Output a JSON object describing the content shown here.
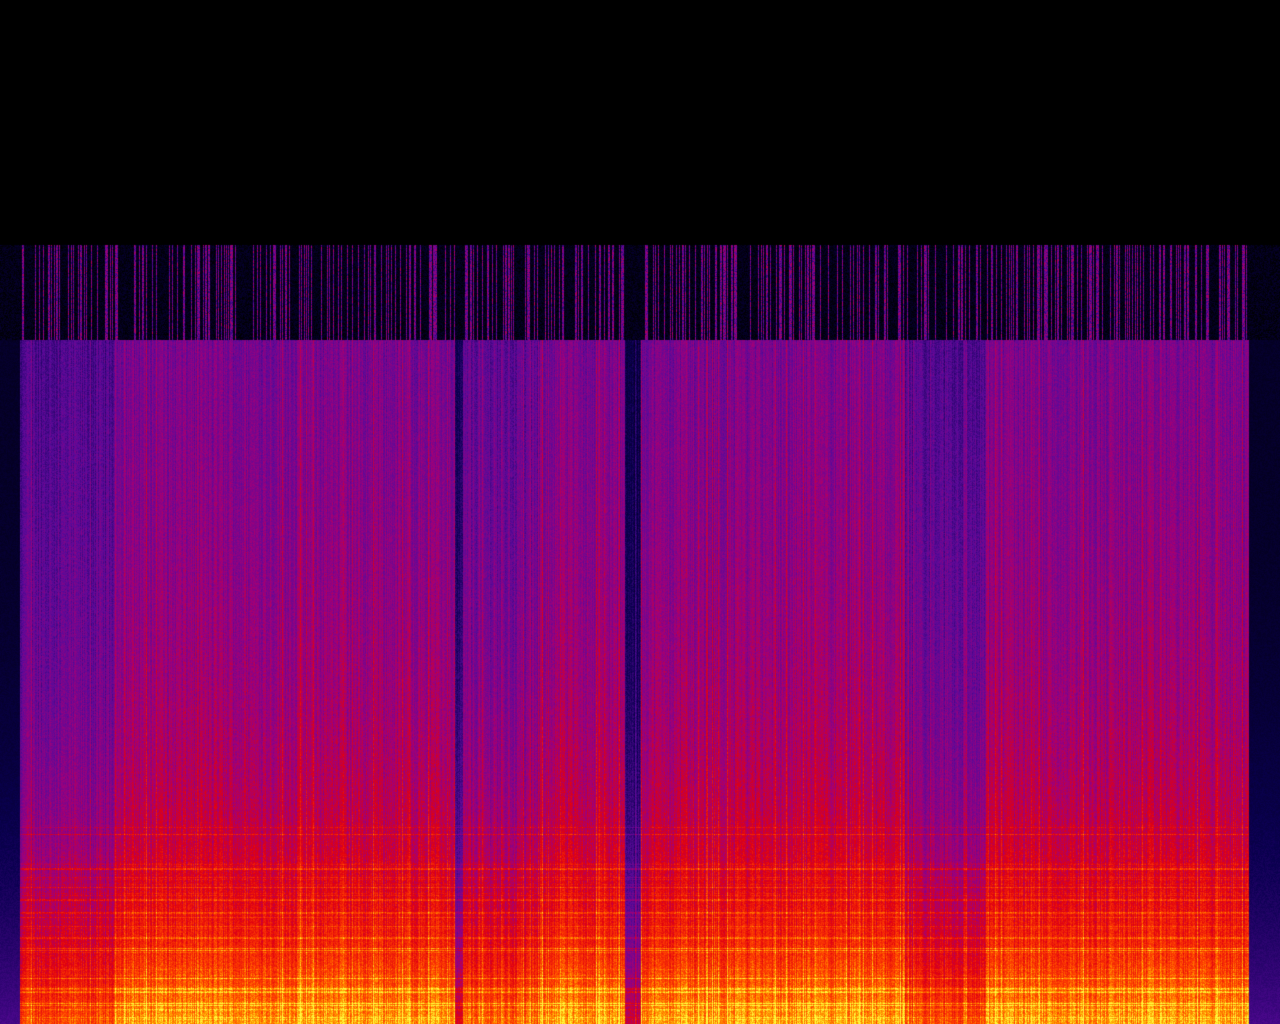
{
  "spectrogram": {
    "colormap": [
      "#000000",
      "#0a0050",
      "#5a0a9a",
      "#a0007a",
      "#e00010",
      "#ff4000",
      "#ffa000",
      "#ffff40"
    ],
    "background": "#000000"
  }
}
